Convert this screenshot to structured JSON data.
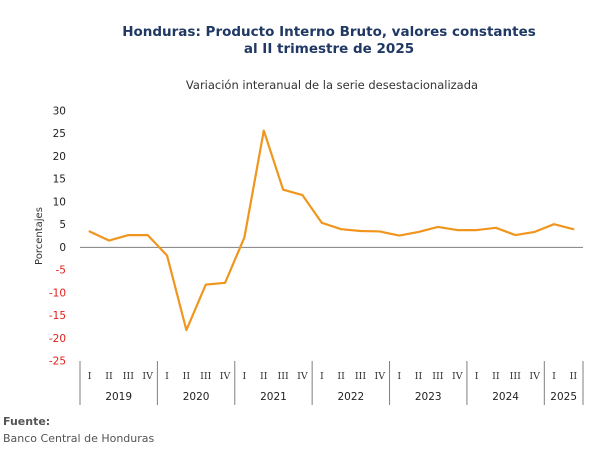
{
  "chart_data": {
    "type": "line",
    "title_line1": "Honduras: Producto Interno Bruto, valores constantes",
    "title_line2": "al II trimestre de 2025",
    "subtitle": "Variación interanual de la serie desestacionalizada",
    "ylabel": "Porcentajes",
    "ylim": [
      -25,
      30
    ],
    "yticks": [
      30,
      25,
      20,
      15,
      10,
      5,
      0,
      -5,
      -10,
      -15,
      -20,
      -25
    ],
    "colors": {
      "line": "#f0961e",
      "positive_tick": "#222222",
      "negative_tick": "#e0201b",
      "zero_line": "#7f7f7f"
    },
    "years": [
      {
        "label": "2019",
        "quarters": [
          "I",
          "II",
          "III",
          "IV"
        ]
      },
      {
        "label": "2020",
        "quarters": [
          "I",
          "II",
          "III",
          "IV"
        ]
      },
      {
        "label": "2021",
        "quarters": [
          "I",
          "II",
          "III",
          "IV"
        ]
      },
      {
        "label": "2022",
        "quarters": [
          "I",
          "II",
          "III",
          "IV"
        ]
      },
      {
        "label": "2023",
        "quarters": [
          "I",
          "II",
          "III",
          "IV"
        ]
      },
      {
        "label": "2024",
        "quarters": [
          "I",
          "II",
          "III",
          "IV"
        ]
      },
      {
        "label": "2025",
        "quarters": [
          "I",
          "II"
        ]
      }
    ],
    "series": [
      {
        "values": [
          3.5,
          1.5,
          2.7,
          2.7,
          -1.8,
          -18.2,
          -8.2,
          -7.8,
          2.2,
          25.7,
          12.7,
          11.5,
          5.4,
          4.0,
          3.6,
          3.5,
          2.6,
          3.4,
          4.5,
          3.8,
          3.8,
          4.3,
          2.7,
          3.4,
          5.1,
          4.0
        ]
      }
    ]
  },
  "source": {
    "label": "Fuente:",
    "text": "Banco Central de Honduras"
  }
}
